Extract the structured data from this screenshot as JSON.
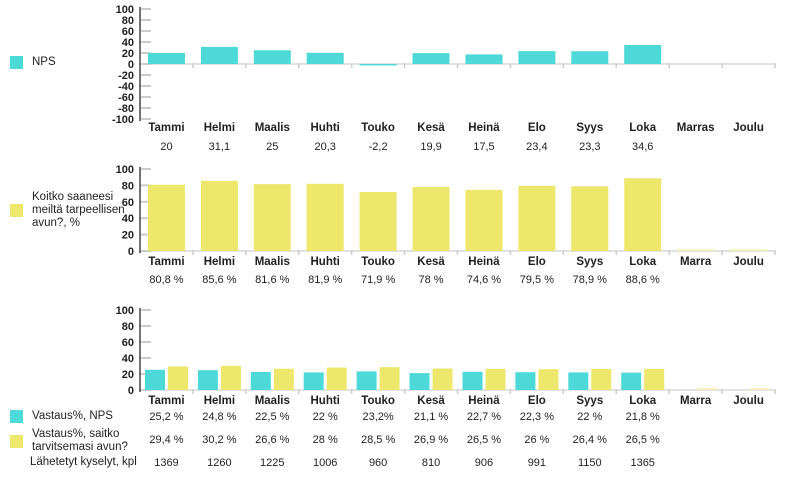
{
  "colors": {
    "cyan": "#4ed9d9",
    "yellow": "#ede76c",
    "pale_yellow": "#f6f2bb",
    "axis_line": "#737373",
    "tick_line": "#cccccc",
    "baseline": "#d9d9d9",
    "text": "#1f1f1f"
  },
  "chart_data": [
    {
      "type": "bar",
      "legend_position": "left",
      "grid": false,
      "categories": [
        "Tammi",
        "Helmi",
        "Maalis",
        "Huhti",
        "Touko",
        "Kesä",
        "Heinä",
        "Elo",
        "Syys",
        "Loka",
        "Marras",
        "Joulu"
      ],
      "series": [
        {
          "name": "NPS",
          "color_key": "cyan",
          "values": [
            20,
            31.1,
            25,
            20.3,
            -2.2,
            19.9,
            17.5,
            23.4,
            23.3,
            34.6,
            null,
            null
          ]
        }
      ],
      "value_rows": [
        {
          "label": "",
          "swatch": null,
          "values": [
            "20",
            "31,1",
            "25",
            "20,3",
            "-2,2",
            "19,9",
            "17,5",
            "23,4",
            "23,3",
            "34,6",
            "",
            ""
          ]
        }
      ],
      "ylim": [
        -100,
        100
      ],
      "yticks": [
        "100",
        "80",
        "60",
        "40",
        "20",
        "0",
        "-20",
        "-40",
        "-60",
        "-80",
        "-100"
      ]
    },
    {
      "type": "bar",
      "legend_position": "left",
      "grid": false,
      "categories": [
        "Tammi",
        "Helmi",
        "Maalis",
        "Huhti",
        "Touko",
        "Kesä",
        "Heinä",
        "Elo",
        "Syys",
        "Loka",
        "Marra",
        "Joulu"
      ],
      "series": [
        {
          "name": "Koitko saaneesi meiltä tarpeellisen avun?, %",
          "color_key": "yellow",
          "values": [
            80.8,
            85.6,
            81.6,
            81.9,
            71.9,
            78,
            74.6,
            79.5,
            78.9,
            88.6,
            0.5,
            0.5
          ],
          "faded_indices": [
            10,
            11
          ]
        }
      ],
      "value_rows": [
        {
          "label": "",
          "swatch": null,
          "values": [
            "80,8 %",
            "85,6 %",
            "81,6 %",
            "81,9 %",
            "71,9 %",
            "78 %",
            "74,6 %",
            "79,5 %",
            "78,9 %",
            "88,6 %",
            "",
            ""
          ]
        }
      ],
      "ylim": [
        0,
        100
      ],
      "yticks": [
        "100",
        "80",
        "60",
        "40",
        "20",
        "0"
      ]
    },
    {
      "type": "bar",
      "legend_position": "left",
      "grid": false,
      "categories": [
        "Tammi",
        "Helmi",
        "Maalis",
        "Huhti",
        "Touko",
        "Kesä",
        "Heinä",
        "Elo",
        "Syys",
        "Loka",
        "Marra",
        "Joulu"
      ],
      "series": [
        {
          "name": "Vastaus%, NPS",
          "color_key": "cyan",
          "values": [
            25.2,
            24.8,
            22.5,
            22,
            23.2,
            21.1,
            22.7,
            22.3,
            22,
            21.8,
            null,
            null
          ]
        },
        {
          "name": "Vastaus%, saitko tarvitsemasi avun?",
          "color_key": "yellow",
          "values": [
            29.4,
            30.2,
            26.6,
            28,
            28.5,
            26.9,
            26.5,
            26,
            26.4,
            26.5,
            0.5,
            0.5
          ],
          "faded_indices": [
            10,
            11
          ]
        }
      ],
      "value_rows": [
        {
          "label": "Vastaus%, NPS",
          "swatch": "cyan",
          "values": [
            "25,2 %",
            "24,8 %",
            "22,5 %",
            "22 %",
            "23,2%",
            "21,1 %",
            "22,7 %",
            "22,3 %",
            "22 %",
            "21,8 %",
            "",
            ""
          ]
        },
        {
          "label": "Vastaus%, saitko tarvitsemasi avun?",
          "swatch": "yellow",
          "values": [
            "29,4 %",
            "30,2 %",
            "26,6 %",
            "28 %",
            "28,5 %",
            "26,9 %",
            "26,5 %",
            "26 %",
            "26,4 %",
            "26,5 %",
            "",
            ""
          ]
        },
        {
          "label": "Lähetetyt kyselyt, kpl",
          "swatch": null,
          "values": [
            "1369",
            "1260",
            "1225",
            "1006",
            "960",
            "810",
            "906",
            "991",
            "1150",
            "1365",
            "",
            ""
          ]
        }
      ],
      "ylim": [
        0,
        100
      ],
      "yticks": [
        "100",
        "80",
        "60",
        "40",
        "20",
        "0"
      ]
    }
  ]
}
